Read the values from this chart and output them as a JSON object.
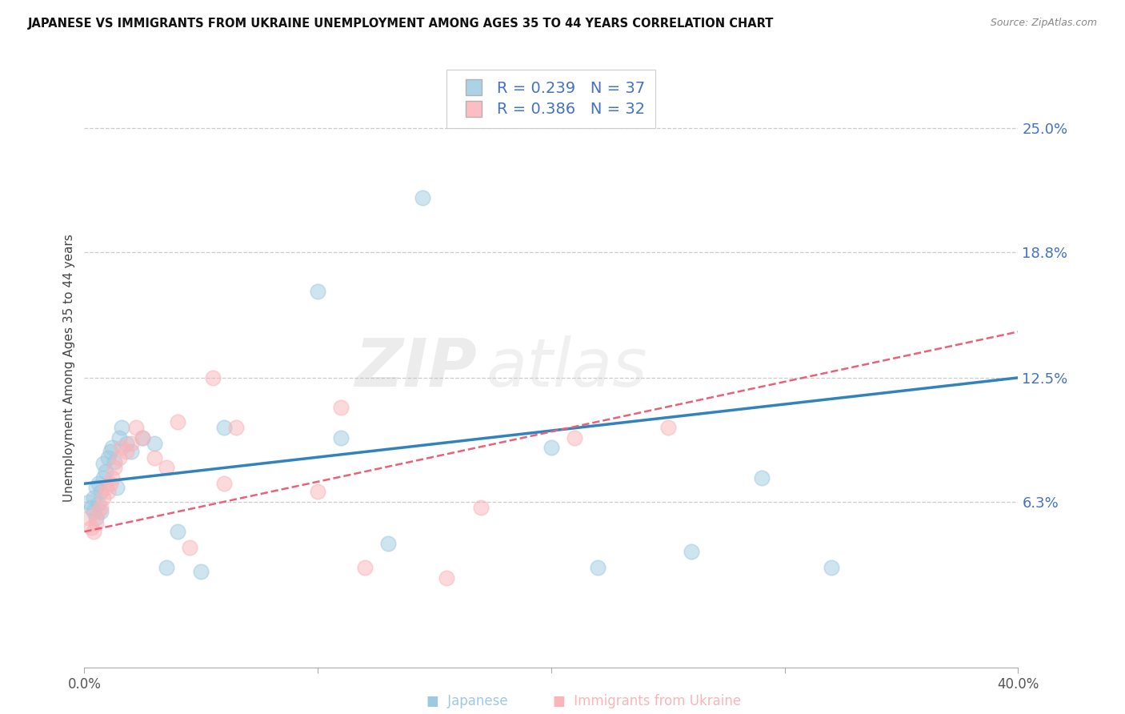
{
  "title": "JAPANESE VS IMMIGRANTS FROM UKRAINE UNEMPLOYMENT AMONG AGES 35 TO 44 YEARS CORRELATION CHART",
  "source": "Source: ZipAtlas.com",
  "ylabel": "Unemployment Among Ages 35 to 44 years",
  "xlim": [
    0.0,
    0.4
  ],
  "ylim": [
    -0.02,
    0.28
  ],
  "ytick_positions": [
    0.063,
    0.125,
    0.188,
    0.25
  ],
  "ytick_labels": [
    "6.3%",
    "12.5%",
    "18.8%",
    "25.0%"
  ],
  "japanese_R": 0.239,
  "japanese_N": 37,
  "ukraine_R": 0.386,
  "ukraine_N": 32,
  "japanese_color": "#9ecae1",
  "ukraine_color": "#fbb4b9",
  "trendline_japanese_color": "#3182bd",
  "trendline_ukraine_color": "#e8627a",
  "japanese_x": [
    0.002,
    0.003,
    0.004,
    0.004,
    0.005,
    0.005,
    0.006,
    0.006,
    0.007,
    0.007,
    0.008,
    0.008,
    0.009,
    0.01,
    0.011,
    0.012,
    0.013,
    0.014,
    0.015,
    0.016,
    0.018,
    0.02,
    0.025,
    0.03,
    0.035,
    0.04,
    0.05,
    0.06,
    0.1,
    0.11,
    0.13,
    0.145,
    0.2,
    0.22,
    0.26,
    0.29,
    0.32
  ],
  "japanese_y": [
    0.063,
    0.06,
    0.058,
    0.065,
    0.055,
    0.07,
    0.062,
    0.072,
    0.058,
    0.068,
    0.075,
    0.082,
    0.078,
    0.085,
    0.088,
    0.09,
    0.083,
    0.07,
    0.095,
    0.1,
    0.092,
    0.088,
    0.095,
    0.092,
    0.03,
    0.048,
    0.028,
    0.1,
    0.168,
    0.095,
    0.042,
    0.215,
    0.09,
    0.03,
    0.038,
    0.075,
    0.03
  ],
  "ukraine_x": [
    0.002,
    0.003,
    0.004,
    0.005,
    0.006,
    0.007,
    0.008,
    0.009,
    0.01,
    0.011,
    0.012,
    0.013,
    0.015,
    0.016,
    0.018,
    0.02,
    0.022,
    0.025,
    0.03,
    0.035,
    0.04,
    0.045,
    0.055,
    0.06,
    0.065,
    0.1,
    0.11,
    0.12,
    0.155,
    0.17,
    0.21,
    0.25
  ],
  "ukraine_y": [
    0.055,
    0.05,
    0.048,
    0.052,
    0.058,
    0.06,
    0.065,
    0.07,
    0.068,
    0.072,
    0.075,
    0.08,
    0.085,
    0.09,
    0.088,
    0.092,
    0.1,
    0.095,
    0.085,
    0.08,
    0.103,
    0.04,
    0.125,
    0.072,
    0.1,
    0.068,
    0.11,
    0.03,
    0.025,
    0.06,
    0.095,
    0.1
  ],
  "jap_trend_x0": 0.0,
  "jap_trend_y0": 0.072,
  "jap_trend_x1": 0.4,
  "jap_trend_y1": 0.125,
  "ukr_trend_x0": 0.0,
  "ukr_trend_y0": 0.048,
  "ukr_trend_x1": 0.4,
  "ukr_trend_y1": 0.148
}
